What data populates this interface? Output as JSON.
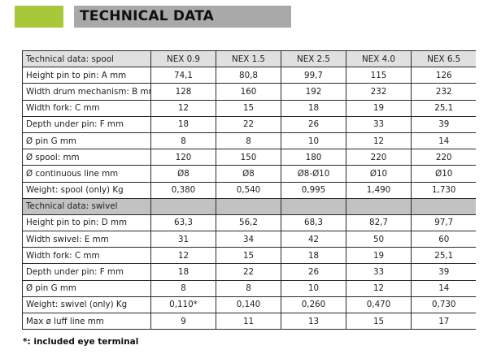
{
  "title": "TECHNICAL DATA",
  "colors": {
    "accent": "#a8c83a",
    "title_bar": "#a9a9a9",
    "section_header": "#c2c2c2"
  },
  "spool_header": {
    "label": "Technical data: spool",
    "models": [
      "NEX 0.9",
      "NEX 1.5",
      "NEX 2.5",
      "NEX 4.0",
      "NEX 6.5"
    ]
  },
  "spool_rows": [
    {
      "label": "Height pin to pin: A mm",
      "values": [
        "74,1",
        "80,8",
        "99,7",
        "115",
        "126"
      ]
    },
    {
      "label": "Width drum mechanism: B mm",
      "values": [
        "128",
        "160",
        "192",
        "232",
        "232"
      ]
    },
    {
      "label": "Width fork: C mm",
      "values": [
        "12",
        "15",
        "18",
        "19",
        "25,1"
      ]
    },
    {
      "label": "Depth under pin: F mm",
      "values": [
        "18",
        "22",
        "26",
        "33",
        "39"
      ]
    },
    {
      "label": "Ø pin G mm",
      "values": [
        "8",
        "8",
        "10",
        "12",
        "14"
      ]
    },
    {
      "label": "Ø spool: mm",
      "values": [
        "120",
        "150",
        "180",
        "220",
        "220"
      ]
    },
    {
      "label": "Ø continuous line mm",
      "values": [
        "Ø8",
        "Ø8",
        "Ø8-Ø10",
        "Ø10",
        "Ø10"
      ]
    },
    {
      "label": "Weight: spool (only) Kg",
      "values": [
        "0,380",
        "0,540",
        "0,995",
        "1,490",
        "1,730"
      ]
    }
  ],
  "swivel_header": {
    "label": "Technical data: swivel"
  },
  "swivel_rows": [
    {
      "label": "Height pin to pin: D mm",
      "values": [
        "63,3",
        "56,2",
        "68,3",
        "82,7",
        "97,7"
      ]
    },
    {
      "label": "Width swivel: E mm",
      "values": [
        "31",
        "34",
        "42",
        "50",
        "60"
      ]
    },
    {
      "label": "Width fork: C mm",
      "values": [
        "12",
        "15",
        "18",
        "19",
        "25,1"
      ]
    },
    {
      "label": "Depth under pin: F mm",
      "values": [
        "18",
        "22",
        "26",
        "33",
        "39"
      ]
    },
    {
      "label": "Ø pin G mm",
      "values": [
        "8",
        "8",
        "10",
        "12",
        "14"
      ]
    },
    {
      "label": "Weight: swivel (only) Kg",
      "values": [
        "0,110*",
        "0,140",
        "0,260",
        "0,470",
        "0,730"
      ]
    },
    {
      "label": "Max ø luff line  mm",
      "values": [
        "9",
        "11",
        "13",
        "15",
        "17"
      ]
    }
  ],
  "footnote": "*: included eye terminal"
}
